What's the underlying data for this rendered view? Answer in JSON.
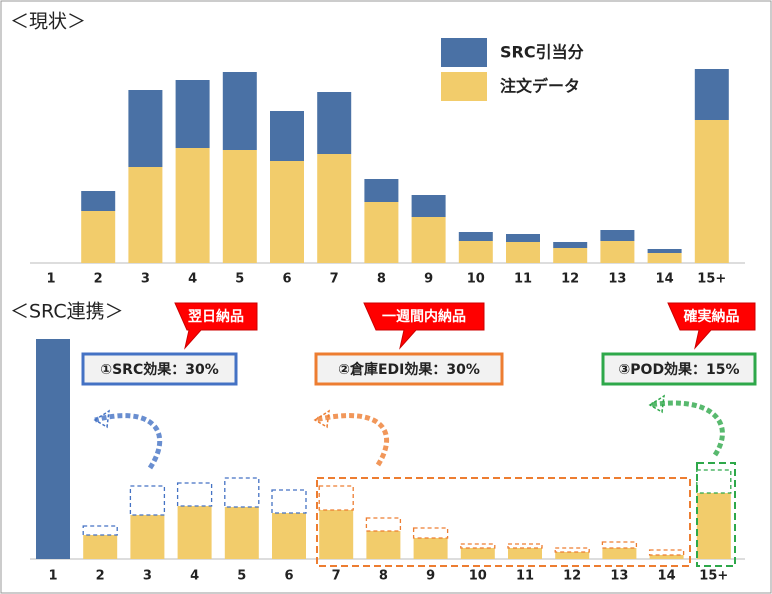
{
  "chart_data": [
    {
      "type": "bar",
      "title": "＜現状＞",
      "stacked": true,
      "categories": [
        "1",
        "2",
        "3",
        "4",
        "5",
        "6",
        "7",
        "8",
        "9",
        "10",
        "11",
        "12",
        "13",
        "14",
        "15+"
      ],
      "series": [
        {
          "name": "注文データ",
          "color": "#f2cc6b",
          "values": [
            0,
            26,
            48,
            57.5,
            56.5,
            51,
            54.5,
            30.5,
            23,
            11,
            10.5,
            7.5,
            11,
            5,
            71.5
          ]
        },
        {
          "name": "SRC引当分",
          "color": "#4a71a5",
          "values": [
            0,
            10,
            38.5,
            34,
            39,
            25,
            31,
            11.5,
            11,
            4.5,
            4,
            3,
            5.5,
            2,
            25.5
          ]
        }
      ],
      "ylim": [
        0,
        100
      ]
    },
    {
      "type": "bar",
      "title": "＜SRC連携＞",
      "stacked": true,
      "categories": [
        "1",
        "2",
        "3",
        "4",
        "5",
        "6",
        "7",
        "8",
        "9",
        "10",
        "11",
        "12",
        "13",
        "14",
        "15+"
      ],
      "series": [
        {
          "color": "#4a71a5",
          "values": [
            110,
            null,
            null,
            null,
            null,
            null,
            null,
            null,
            null,
            null,
            null,
            null,
            null,
            null,
            null
          ]
        },
        {
          "color": "#f2cc6b",
          "values": [
            null,
            12,
            22,
            26.5,
            26,
            23,
            24.5,
            14,
            10.5,
            5.5,
            5.5,
            3.5,
            5.5,
            2,
            33
          ]
        },
        {
          "style": "dashed",
          "values": [
            null,
            4.5,
            14.5,
            11.5,
            14.5,
            11.5,
            12,
            6.5,
            5,
            2,
            2,
            2,
            3,
            2.5,
            11.5
          ]
        }
      ],
      "ylim": [
        0,
        110
      ],
      "annotations": [
        {
          "callout": "翌日納品",
          "label": "①SRC効果：30%",
          "color": "#4472c4"
        },
        {
          "callout": "一週間内納品",
          "label": "②倉庫EDI効果：30%",
          "color": "#ed7d31"
        },
        {
          "callout": "確実納品",
          "label": "③POD効果：15%",
          "color": "#2ea84a"
        }
      ]
    }
  ]
}
